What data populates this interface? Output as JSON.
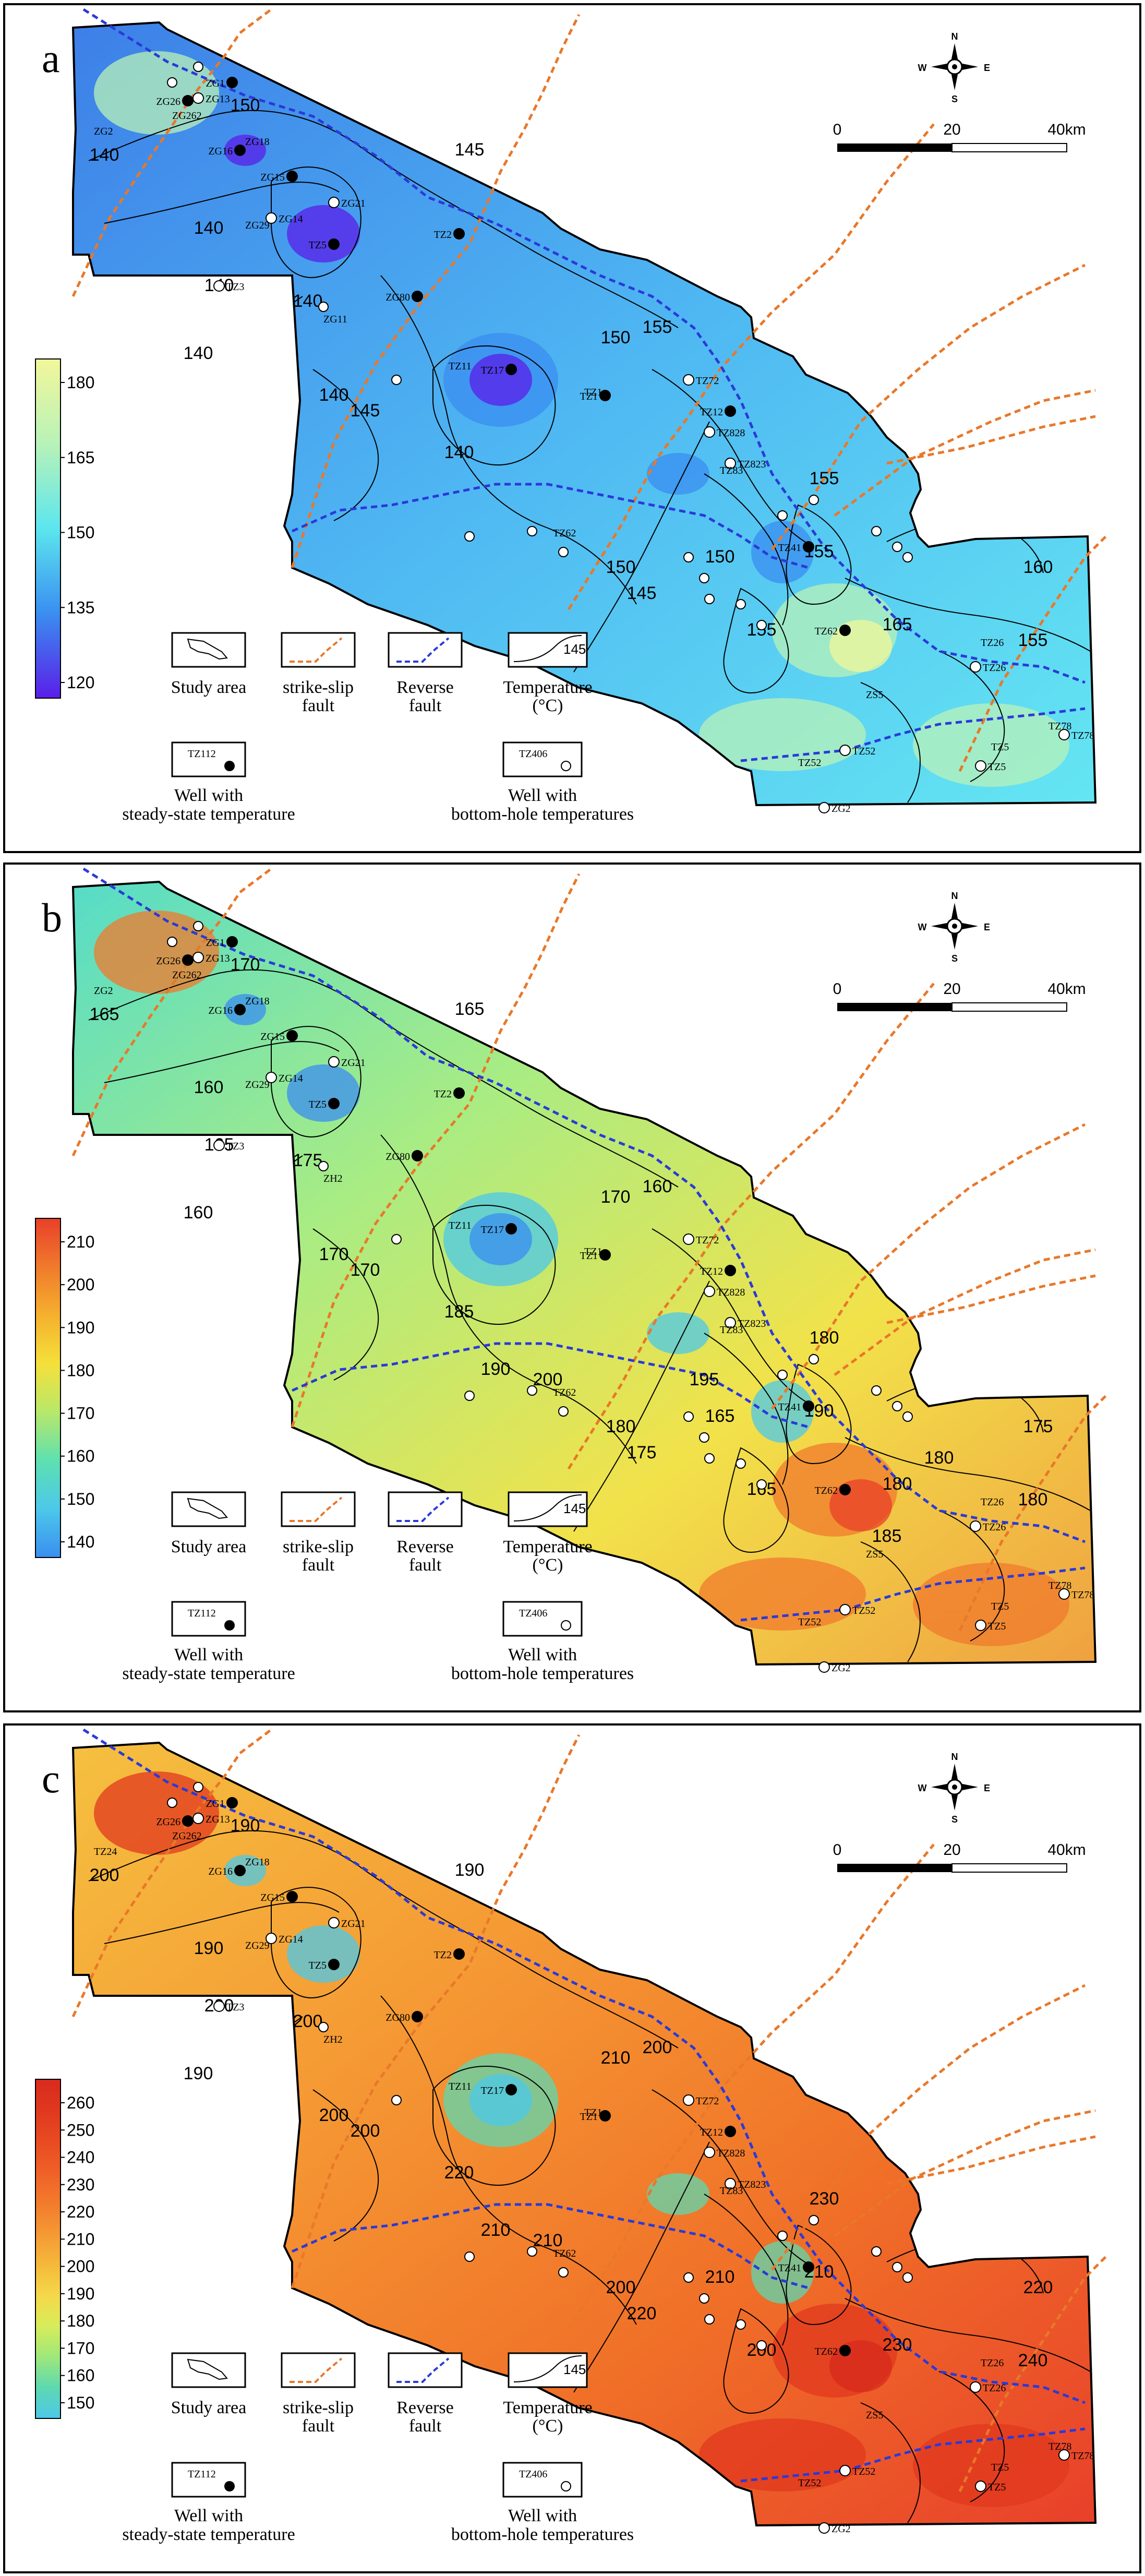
{
  "panels": [
    {
      "letter": "a",
      "legend_bar": {
        "ticks": [
          "180",
          "165",
          "150",
          "135",
          "120"
        ],
        "colors": [
          "#f2f79a",
          "#b8f2b8",
          "#5ce6ee",
          "#3a8ef0",
          "#5a1ee8"
        ]
      },
      "fill": {
        "stops": [
          "#3d7fe8",
          "#4fb8f2",
          "#64e6f2"
        ]
      },
      "contour_labels": [
        "150",
        "140",
        "140",
        "140",
        "145",
        "140",
        "145",
        "140",
        "140",
        "150",
        "155",
        "155",
        "150",
        "145",
        "150",
        "155",
        "155",
        "160",
        "155",
        "165",
        "140"
      ],
      "wells_black": [
        "ZG1",
        "ZG26",
        "ZG16",
        "ZG15",
        "TZ2",
        "TZ5",
        "ZG80",
        "TZ17",
        "TZ1",
        "TZ12",
        "TZ41",
        "TZ62"
      ],
      "wells_white": [
        "ZG13",
        "ZG14",
        "ZG21",
        "TZ3",
        "TZ72",
        "TZ828",
        "TZ823",
        "TZ26",
        "TZ78",
        "TZ52",
        "TZ5",
        "ZG2"
      ],
      "labels_extra": [
        "ZG262",
        "ZG18",
        "ZG29",
        "ZG11",
        "TZ11",
        "TZ62",
        "TZ83",
        "TZ26",
        "TZ5",
        "ZS5",
        "TZ78",
        "TZ52",
        "TZ1",
        "ZG2"
      ]
    },
    {
      "letter": "b",
      "legend_bar": {
        "ticks": [
          "210",
          "200",
          "190",
          "180",
          "170",
          "160",
          "150",
          "140"
        ],
        "colors": [
          "#e8402a",
          "#f07a2c",
          "#f5b02e",
          "#f5e03a",
          "#b8e86a",
          "#5ee0b0",
          "#4cc8ea",
          "#3a8ef0"
        ]
      },
      "fill": {
        "stops": [
          "#56dcc8",
          "#a8ec84",
          "#f2e24a",
          "#f0a040"
        ]
      },
      "contour_labels": [
        "170",
        "165",
        "160",
        "175",
        "170",
        "160",
        "165",
        "165",
        "170",
        "170",
        "160",
        "165",
        "165",
        "175",
        "180",
        "190",
        "180",
        "175",
        "180",
        "180",
        "185",
        "190",
        "200",
        "195",
        "185",
        "180"
      ],
      "wells_black": [
        "ZG1",
        "ZG26",
        "ZG16",
        "ZG15",
        "TZ2",
        "TZ5",
        "ZG80",
        "TZ17",
        "TZ1",
        "TZ12",
        "TZ41",
        "TZ62"
      ],
      "wells_white": [
        "ZG13",
        "ZG14",
        "ZG21",
        "TZ3",
        "TZ72",
        "TZ828",
        "TZ823",
        "TZ26",
        "TZ78",
        "TZ52",
        "TZ5",
        "ZG2"
      ],
      "labels_extra": [
        "ZG262",
        "ZG18",
        "ZG29",
        "ZH2",
        "TZ11",
        "TZ62",
        "TZ83",
        "TZ26",
        "TZ5",
        "ZS5",
        "TZ78",
        "TZ52",
        "TZ1",
        "ZG2"
      ]
    },
    {
      "letter": "c",
      "legend_bar": {
        "ticks": [
          "260",
          "250",
          "240",
          "230",
          "220",
          "210",
          "200",
          "190",
          "180",
          "170",
          "160",
          "150"
        ],
        "colors": [
          "#d82a1e",
          "#e0381e",
          "#e84a22",
          "#f06028",
          "#f27a2c",
          "#f59834",
          "#f5b83a",
          "#f5d84a",
          "#d8ec5a",
          "#9ee87a",
          "#5ed8b0",
          "#4cc8ea"
        ]
      },
      "fill": {
        "stops": [
          "#f5c040",
          "#f59a34",
          "#f07028",
          "#e8402a"
        ]
      },
      "contour_labels": [
        "190",
        "200",
        "190",
        "200",
        "200",
        "190",
        "190",
        "200",
        "200",
        "210",
        "200",
        "200",
        "210",
        "220",
        "200",
        "210",
        "230",
        "220",
        "240",
        "230",
        "220",
        "210",
        "210"
      ],
      "wells_black": [
        "ZG1",
        "ZG26",
        "ZG16",
        "ZG15",
        "TZ2",
        "TZ5",
        "ZG80",
        "TZ17",
        "TZ1",
        "TZ12",
        "TZ41",
        "TZ62"
      ],
      "wells_white": [
        "ZG13",
        "ZG14",
        "ZG21",
        "TZ3",
        "TZ72",
        "TZ828",
        "TZ823",
        "TZ26",
        "TZ78",
        "TZ52",
        "TZ5",
        "ZG2"
      ],
      "labels_extra": [
        "ZG262",
        "ZG18",
        "ZG29",
        "ZH2",
        "TZ11",
        "TZ62",
        "TZ83",
        "TZ26",
        "TZ5",
        "ZS5",
        "TZ78",
        "TZ52",
        "TZ1",
        "TZ24"
      ]
    }
  ],
  "legend": {
    "study_area": "Study area",
    "strike_slip": "strike-slip",
    "strike_slip_2": "fault",
    "reverse": "Reverse",
    "reverse_2": "fault",
    "temperature": "Temperature",
    "temperature_2": "(°C)",
    "contour_sample": "145",
    "well_steady_tag": "TZ112",
    "well_steady_1": "Well with",
    "well_steady_2": "steady-state temperature",
    "well_bht_tag": "TZ406",
    "well_bht_1": "Well with",
    "well_bht_2": "bottom-hole temperatures"
  },
  "scale": {
    "zero": "0",
    "mid": "20",
    "end": "40km"
  },
  "compass": {
    "n": "N",
    "s": "S",
    "e": "E",
    "w": "W"
  },
  "colors": {
    "strike_slip_fault": "#e8782a",
    "reverse_fault": "#2a3ad8",
    "contour": "#000000",
    "frame": "#000000"
  }
}
